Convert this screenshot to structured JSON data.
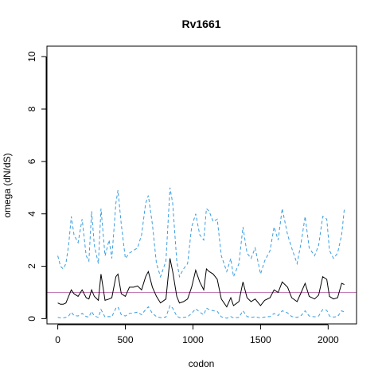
{
  "chart_data": {
    "type": "line",
    "title": "Rv1661",
    "xlabel": "codon",
    "ylabel": "omega (dN/dS)",
    "xlim": [
      -80,
      2210
    ],
    "ylim": [
      -0.2,
      10.4
    ],
    "x_ticks": [
      0,
      500,
      1000,
      1500,
      2000
    ],
    "y_ticks": [
      0,
      2,
      4,
      6,
      8,
      10
    ],
    "grid": false,
    "legend": "none",
    "reference_line": {
      "y": 1.0,
      "color": "#c57fb8"
    },
    "colors": {
      "omega": "#000000",
      "upper": "#3a9de0",
      "lower": "#3a9de0"
    },
    "series": [
      {
        "key": "upper",
        "style": "dashed",
        "x": [
          0,
          20,
          40,
          60,
          80,
          100,
          120,
          150,
          180,
          210,
          230,
          250,
          270,
          300,
          320,
          350,
          380,
          400,
          430,
          445,
          470,
          500,
          530,
          560,
          590,
          620,
          650,
          670,
          700,
          730,
          760,
          800,
          830,
          850,
          880,
          900,
          930,
          960,
          990,
          1020,
          1050,
          1080,
          1100,
          1120,
          1150,
          1180,
          1210,
          1250,
          1280,
          1300,
          1340,
          1370,
          1400,
          1430,
          1460,
          1500,
          1530,
          1570,
          1600,
          1630,
          1660,
          1700,
          1730,
          1770,
          1800,
          1830,
          1860,
          1900,
          1930,
          1960,
          1990,
          2010,
          2040,
          2070,
          2100,
          2120
        ],
        "values": [
          2.4,
          2.0,
          1.9,
          2.1,
          2.8,
          3.9,
          3.2,
          2.9,
          3.8,
          2.4,
          2.2,
          4.1,
          2.8,
          2.1,
          4.2,
          2.4,
          3.0,
          2.3,
          4.4,
          4.9,
          3.6,
          2.3,
          2.5,
          2.6,
          2.7,
          3.2,
          4.4,
          4.7,
          3.6,
          2.1,
          1.6,
          2.2,
          5.0,
          4.4,
          2.2,
          1.6,
          1.9,
          2.1,
          3.5,
          4.0,
          3.2,
          3.0,
          4.2,
          4.1,
          3.7,
          3.8,
          2.4,
          1.8,
          2.3,
          1.6,
          2.1,
          3.5,
          2.5,
          2.3,
          2.7,
          1.7,
          2.2,
          2.6,
          3.5,
          3.0,
          4.2,
          3.2,
          2.7,
          2.1,
          2.9,
          3.9,
          2.7,
          2.4,
          2.8,
          3.9,
          3.8,
          2.6,
          2.3,
          2.5,
          3.2,
          4.2
        ]
      },
      {
        "key": "omega",
        "style": "solid",
        "x": [
          0,
          20,
          40,
          60,
          80,
          100,
          120,
          150,
          180,
          210,
          230,
          250,
          270,
          300,
          320,
          350,
          380,
          400,
          430,
          445,
          470,
          500,
          530,
          560,
          590,
          620,
          650,
          670,
          700,
          730,
          760,
          800,
          830,
          850,
          880,
          900,
          930,
          960,
          990,
          1020,
          1050,
          1080,
          1100,
          1120,
          1150,
          1180,
          1210,
          1250,
          1280,
          1300,
          1340,
          1370,
          1400,
          1430,
          1460,
          1500,
          1530,
          1570,
          1600,
          1630,
          1660,
          1700,
          1730,
          1770,
          1800,
          1830,
          1860,
          1900,
          1930,
          1960,
          1990,
          2010,
          2040,
          2070,
          2100,
          2120
        ],
        "values": [
          0.6,
          0.55,
          0.55,
          0.6,
          0.85,
          1.1,
          0.95,
          0.85,
          1.1,
          0.8,
          0.75,
          1.1,
          0.85,
          0.7,
          1.7,
          0.7,
          0.75,
          0.8,
          1.6,
          1.7,
          0.95,
          0.85,
          1.2,
          1.2,
          1.25,
          1.1,
          1.6,
          1.8,
          1.2,
          0.85,
          0.6,
          0.75,
          2.3,
          1.8,
          0.85,
          0.6,
          0.65,
          0.75,
          1.2,
          1.85,
          1.4,
          1.1,
          1.9,
          1.8,
          1.7,
          1.5,
          0.75,
          0.45,
          0.8,
          0.5,
          0.65,
          1.4,
          0.8,
          0.65,
          0.75,
          0.5,
          0.7,
          0.8,
          1.1,
          1.0,
          1.4,
          1.2,
          0.8,
          0.65,
          1.0,
          1.35,
          0.85,
          0.75,
          0.9,
          1.6,
          1.5,
          0.85,
          0.75,
          0.8,
          1.35,
          1.3
        ]
      },
      {
        "key": "lower",
        "style": "dashed",
        "x": [
          0,
          20,
          40,
          60,
          80,
          100,
          120,
          150,
          180,
          210,
          230,
          250,
          270,
          300,
          320,
          350,
          380,
          400,
          430,
          445,
          470,
          500,
          530,
          560,
          590,
          620,
          650,
          670,
          700,
          730,
          760,
          800,
          830,
          850,
          880,
          900,
          930,
          960,
          990,
          1020,
          1050,
          1080,
          1100,
          1120,
          1150,
          1180,
          1210,
          1250,
          1280,
          1300,
          1340,
          1370,
          1400,
          1430,
          1460,
          1500,
          1530,
          1570,
          1600,
          1630,
          1660,
          1700,
          1730,
          1770,
          1800,
          1830,
          1860,
          1900,
          1930,
          1960,
          1990,
          2010,
          2040,
          2070,
          2100,
          2120
        ],
        "values": [
          0.05,
          0.03,
          0.03,
          0.05,
          0.1,
          0.25,
          0.12,
          0.1,
          0.2,
          0.08,
          0.06,
          0.28,
          0.1,
          0.05,
          0.35,
          0.06,
          0.08,
          0.07,
          0.4,
          0.45,
          0.15,
          0.1,
          0.2,
          0.22,
          0.25,
          0.15,
          0.35,
          0.45,
          0.2,
          0.08,
          0.04,
          0.06,
          0.5,
          0.4,
          0.1,
          0.04,
          0.05,
          0.07,
          0.2,
          0.38,
          0.25,
          0.15,
          0.4,
          0.35,
          0.3,
          0.28,
          0.07,
          0.02,
          0.08,
          0.03,
          0.05,
          0.3,
          0.08,
          0.05,
          0.07,
          0.03,
          0.06,
          0.08,
          0.2,
          0.12,
          0.3,
          0.22,
          0.08,
          0.05,
          0.12,
          0.3,
          0.1,
          0.07,
          0.1,
          0.35,
          0.32,
          0.1,
          0.06,
          0.08,
          0.3,
          0.25
        ]
      }
    ]
  }
}
